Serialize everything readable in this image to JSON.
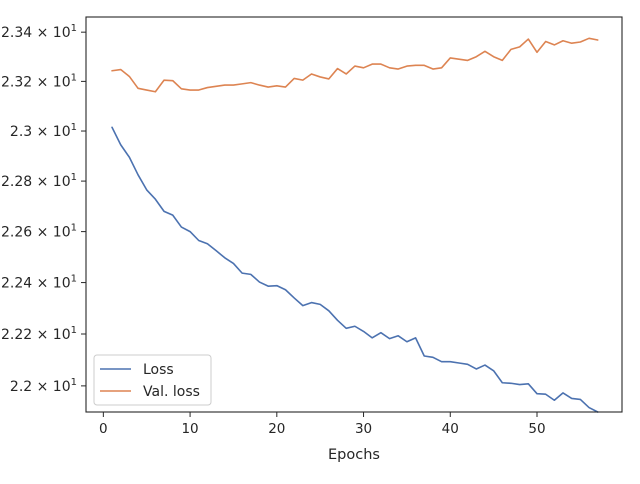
{
  "chart_data": {
    "type": "line",
    "title": "",
    "xlabel": "Epochs",
    "ylabel": "",
    "xlim": [
      -2,
      59.8
    ],
    "ylim": [
      21.9,
      23.462
    ],
    "yscale": "log",
    "grid": false,
    "legend_position": "lower-left",
    "xticks": [
      0,
      10,
      20,
      30,
      40,
      50
    ],
    "xtick_labels": [
      "0",
      "10",
      "20",
      "30",
      "40",
      "50"
    ],
    "yticks": [
      22.0,
      22.2,
      22.4,
      22.6,
      22.8,
      23.0,
      23.2,
      23.4
    ],
    "ytick_labels": [
      {
        "mant": "2.2",
        "exp": "1"
      },
      {
        "mant": "2.22",
        "exp": "1"
      },
      {
        "mant": "2.24",
        "exp": "1"
      },
      {
        "mant": "2.26",
        "exp": "1"
      },
      {
        "mant": "2.28",
        "exp": "1"
      },
      {
        "mant": "2.3",
        "exp": "1"
      },
      {
        "mant": "2.32",
        "exp": "1"
      },
      {
        "mant": "2.34",
        "exp": "1"
      }
    ],
    "x": [
      1,
      2,
      3,
      4,
      5,
      6,
      7,
      8,
      9,
      10,
      11,
      12,
      13,
      14,
      15,
      16,
      17,
      18,
      19,
      20,
      21,
      22,
      23,
      24,
      25,
      26,
      27,
      28,
      29,
      30,
      31,
      32,
      33,
      34,
      35,
      36,
      37,
      38,
      39,
      40,
      41,
      42,
      43,
      44,
      45,
      46,
      47,
      48,
      49,
      50,
      51,
      52,
      53,
      54,
      55,
      56,
      57
    ],
    "series": [
      {
        "name": "Loss",
        "color": "#4c72b0",
        "values": [
          23.015,
          22.945,
          22.895,
          22.825,
          22.765,
          22.728,
          22.68,
          22.665,
          22.618,
          22.6,
          22.565,
          22.552,
          22.525,
          22.497,
          22.475,
          22.437,
          22.432,
          22.402,
          22.386,
          22.388,
          22.372,
          22.34,
          22.31,
          22.322,
          22.315,
          22.29,
          22.253,
          22.222,
          22.23,
          22.21,
          22.185,
          22.205,
          22.182,
          22.193,
          22.17,
          22.185,
          22.115,
          22.11,
          22.093,
          22.093,
          22.088,
          22.083,
          22.065,
          22.08,
          22.058,
          22.012,
          22.01,
          22.005,
          22.008,
          21.97,
          21.968,
          21.945,
          21.973,
          21.952,
          21.948,
          21.917,
          21.9
        ]
      },
      {
        "name": "Val. loss",
        "color": "#dd8452",
        "values": [
          23.243,
          23.248,
          23.22,
          23.172,
          23.165,
          23.158,
          23.205,
          23.203,
          23.17,
          23.165,
          23.165,
          23.175,
          23.18,
          23.185,
          23.185,
          23.19,
          23.195,
          23.185,
          23.177,
          23.182,
          23.177,
          23.212,
          23.205,
          23.23,
          23.218,
          23.21,
          23.252,
          23.23,
          23.262,
          23.255,
          23.27,
          23.27,
          23.255,
          23.25,
          23.262,
          23.265,
          23.265,
          23.25,
          23.255,
          23.295,
          23.29,
          23.285,
          23.3,
          23.322,
          23.3,
          23.285,
          23.33,
          23.34,
          23.372,
          23.318,
          23.362,
          23.348,
          23.365,
          23.355,
          23.36,
          23.375,
          23.368
        ]
      }
    ]
  }
}
